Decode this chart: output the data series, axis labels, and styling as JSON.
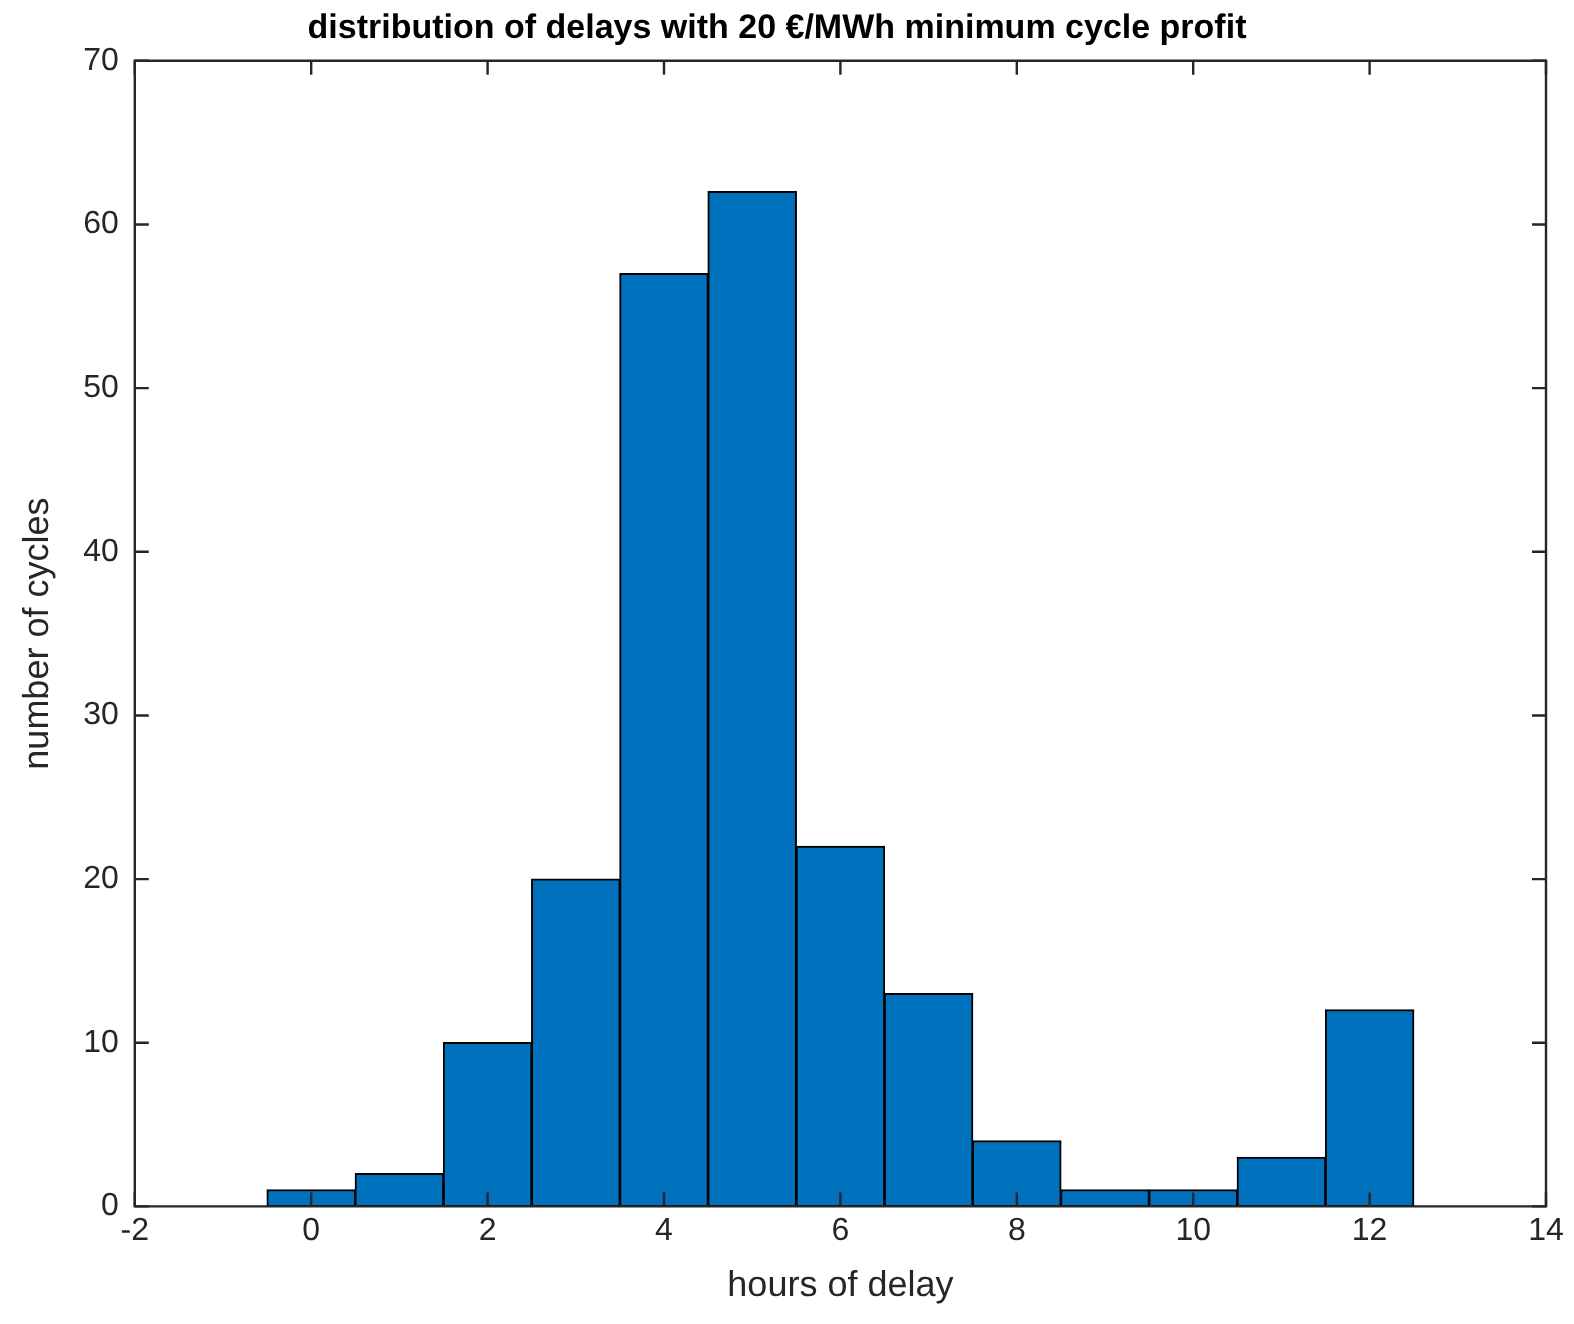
{
  "chart_data": {
    "type": "histogram",
    "title": "distribution of delays with 20 €/MWh minimum cycle profit",
    "xlabel": "hours of delay",
    "ylabel": "number of cycles",
    "bins": [
      -1.5,
      -0.5,
      0.5,
      1.5,
      2.5,
      3.5,
      4.5,
      5.5,
      6.5,
      7.5,
      8.5,
      9.5,
      10.5,
      11.5,
      12.5,
      13.5
    ],
    "values": [
      0,
      1,
      2,
      10,
      20,
      57,
      62,
      22,
      13,
      4,
      1,
      1,
      3,
      12,
      0
    ],
    "color": "#0072bd",
    "xlim": [
      -2,
      14
    ],
    "xticks": [
      -2,
      0,
      2,
      4,
      6,
      8,
      10,
      12,
      14
    ],
    "ylim": [
      0,
      70
    ],
    "yticks": [
      0,
      10,
      20,
      30,
      40,
      50,
      60,
      70
    ],
    "grid": false,
    "legend": false
  }
}
